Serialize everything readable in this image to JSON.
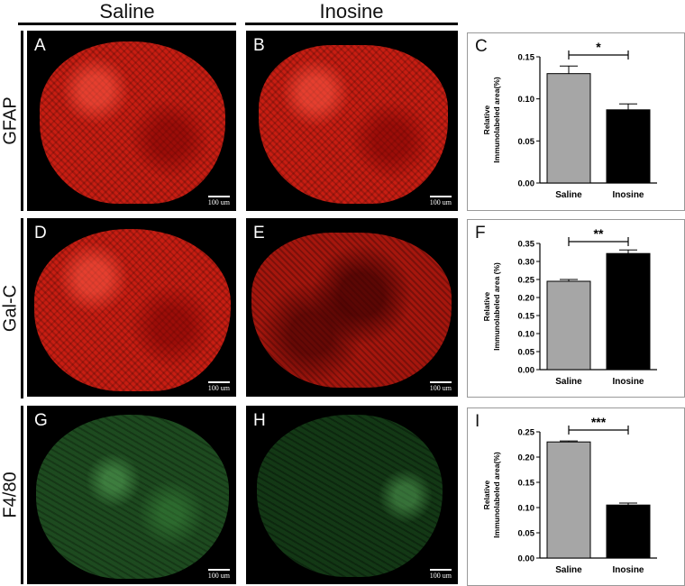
{
  "columns": {
    "left": "Saline",
    "right": "Inosine"
  },
  "rows": [
    {
      "label": "GFAP",
      "left_letter": "A",
      "right_letter": "B",
      "chart_letter": "C"
    },
    {
      "label": "Gal-C",
      "left_letter": "D",
      "right_letter": "E",
      "chart_letter": "F"
    },
    {
      "label": "F4/80",
      "left_letter": "G",
      "right_letter": "H",
      "chart_letter": "I"
    }
  ],
  "scale_bar": "100 um",
  "colors": {
    "saline_bar": "#a6a6a6",
    "inosine_bar": "#000000",
    "gfap_stain": "#c81d12",
    "f480_stain": "#1d4a1f"
  },
  "chart_data": [
    {
      "type": "bar",
      "panel": "C",
      "categories": [
        "Saline",
        "Inosine"
      ],
      "values": [
        0.13,
        0.087
      ],
      "errors": [
        0.009,
        0.007
      ],
      "ylabel_lines": [
        "Relative",
        "Immunolabeled area(%)"
      ],
      "ylim": [
        0,
        0.15
      ],
      "yticks": [
        "0.00",
        "0.05",
        "0.10",
        "0.15"
      ],
      "significance": "*"
    },
    {
      "type": "bar",
      "panel": "F",
      "categories": [
        "Saline",
        "Inosine"
      ],
      "values": [
        0.245,
        0.322
      ],
      "errors": [
        0.005,
        0.01
      ],
      "ylabel_lines": [
        "Relative",
        "Immunolabeled area (%)"
      ],
      "ylim": [
        0,
        0.35
      ],
      "yticks": [
        "0.00",
        "0.05",
        "0.10",
        "0.15",
        "0.20",
        "0.25",
        "0.30",
        "0.35"
      ],
      "significance": "**"
    },
    {
      "type": "bar",
      "panel": "I",
      "categories": [
        "Saline",
        "Inosine"
      ],
      "values": [
        0.23,
        0.105
      ],
      "errors": [
        0.002,
        0.004
      ],
      "ylabel_lines": [
        "Relative",
        "Immunolabeled area(%)"
      ],
      "ylim": [
        0,
        0.25
      ],
      "yticks": [
        "0.00",
        "0.05",
        "0.10",
        "0.15",
        "0.20",
        "0.25"
      ],
      "significance": "***"
    }
  ]
}
